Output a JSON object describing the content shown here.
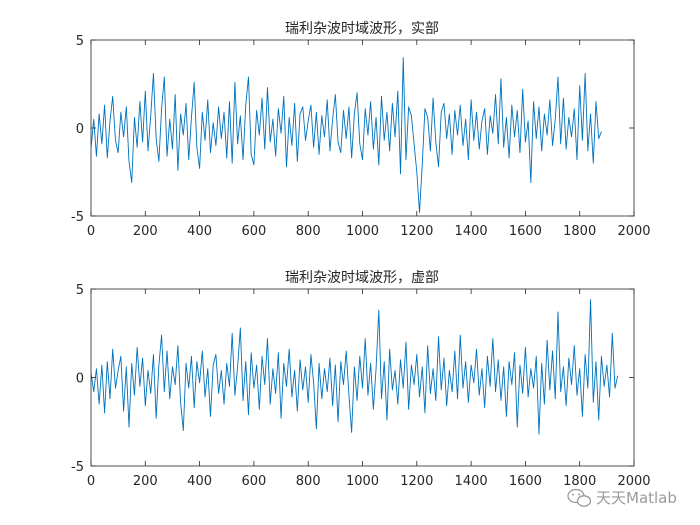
{
  "chart_data": [
    {
      "type": "line",
      "title": "瑞利杂波时域波形，实部",
      "xlim": [
        0,
        2000
      ],
      "ylim": [
        -5,
        5
      ],
      "xticks": [
        "0",
        "200",
        "400",
        "600",
        "800",
        "1000",
        "1200",
        "1400",
        "1600",
        "1800",
        "2000"
      ],
      "yticks": [
        "5",
        "0",
        "-5"
      ],
      "color": "#0072BD",
      "series": [
        {
          "x_step": 10,
          "values": [
            -1.2,
            0.5,
            -1.6,
            0.8,
            -0.9,
            1.3,
            -1.7,
            0.4,
            1.8,
            -0.7,
            -1.4,
            0.9,
            -0.5,
            1.2,
            -1.9,
            -3.1,
            0.6,
            -1.1,
            1.5,
            -0.8,
            2.1,
            -1.3,
            0.7,
            3.1,
            -0.6,
            -1.9,
            1.1,
            2.9,
            -1.6,
            0.5,
            -1.2,
            1.9,
            -2.4,
            0.8,
            -0.4,
            1.4,
            -1.8,
            0.6,
            2.6,
            -1.1,
            -2.3,
            0.9,
            -0.7,
            1.6,
            -1.4,
            0.3,
            -1.0,
            1.2,
            -0.6,
            0.9,
            -1.7,
            1.5,
            -2.0,
            2.6,
            -0.9,
            0.7,
            -1.8,
            1.3,
            2.9,
            -1.5,
            -2.1,
            1.0,
            -0.4,
            1.7,
            -1.2,
            2.3,
            -0.8,
            0.5,
            -1.6,
            1.1,
            -0.3,
            1.8,
            -2.2,
            0.6,
            -1.0,
            1.4,
            -1.9,
            0.8,
            1.2,
            -0.7,
            0.4,
            1.3,
            -1.1,
            0.9,
            -1.5,
            0.7,
            -0.5,
            1.6,
            -1.3,
            0.5,
            1.9,
            -0.8,
            -1.4,
            1.0,
            -0.6,
            1.2,
            -1.7,
            0.8,
            2.0,
            -0.9,
            -1.8,
            1.1,
            -0.4,
            1.5,
            -1.2,
            0.6,
            -2.1,
            1.8,
            -0.7,
            0.9,
            -1.3,
            1.4,
            -0.5,
            2.1,
            -2.6,
            4.0,
            -1.8,
            1.2,
            0.7,
            -0.9,
            -2.5,
            -4.8,
            -2.1,
            1.1,
            0.6,
            -1.3,
            1.7,
            -0.8,
            -2.2,
            0.9,
            1.4,
            -0.6,
            0.8,
            -1.5,
            1.0,
            -0.4,
            1.3,
            -1.0,
            0.5,
            -1.8,
            1.6,
            -0.7,
            0.9,
            -1.2,
            0.4,
            1.1,
            -1.5,
            0.7,
            -0.3,
            1.9,
            -0.9,
            2.8,
            -1.1,
            0.6,
            -1.7,
            1.3,
            -0.5,
            1.0,
            -1.4,
            2.2,
            -0.8,
            0.4,
            -3.1,
            1.5,
            -0.6,
            1.2,
            -1.3,
            0.8,
            -0.4,
            1.6,
            -1.0,
            0.5,
            2.9,
            -0.9,
            1.7,
            -1.2,
            0.6,
            -0.5,
            1.1,
            -1.8,
            2.4,
            -0.7,
            3.1,
            -1.3,
            0.8,
            -2.0,
            1.5,
            -0.6,
            -0.2
          ]
        }
      ]
    },
    {
      "type": "line",
      "title": "瑞利杂波时域波形，虚部",
      "xlim": [
        0,
        2000
      ],
      "ylim": [
        -5,
        5
      ],
      "xticks": [
        "0",
        "200",
        "400",
        "600",
        "800",
        "1000",
        "1200",
        "1400",
        "1600",
        "1800",
        "2000"
      ],
      "yticks": [
        "5",
        "0",
        "-5"
      ],
      "color": "#0072BD",
      "series": [
        {
          "x_step": 10,
          "values": [
            0.3,
            -0.8,
            0.5,
            -1.5,
            0.7,
            -2.0,
            0.9,
            -1.2,
            1.6,
            -0.6,
            0.4,
            1.2,
            -1.9,
            0.6,
            -2.8,
            0.8,
            -1.0,
            1.7,
            -0.5,
            1.1,
            -1.6,
            0.4,
            -0.9,
            1.3,
            -2.3,
            0.7,
            2.4,
            -0.8,
            1.5,
            -1.2,
            0.6,
            -0.4,
            1.8,
            -1.4,
            -3.0,
            0.8,
            -0.6,
            1.2,
            -1.7,
            0.9,
            -0.3,
            1.5,
            -1.1,
            0.5,
            -2.2,
            0.7,
            1.3,
            -0.9,
            0.4,
            -1.5,
            0.8,
            -0.5,
            2.5,
            -1.0,
            0.6,
            2.8,
            -1.3,
            0.9,
            -2.1,
            1.4,
            -0.6,
            0.7,
            -1.8,
            1.2,
            -0.4,
            2.2,
            -1.5,
            0.5,
            -0.9,
            1.4,
            -2.3,
            0.8,
            -0.5,
            1.6,
            -1.1,
            0.4,
            -1.9,
            1.0,
            -0.7,
            0.6,
            -1.4,
            1.3,
            -0.3,
            -2.9,
            0.8,
            -1.2,
            0.5,
            -0.8,
            1.1,
            -1.6,
            0.7,
            -2.5,
            0.9,
            -0.4,
            1.5,
            -1.0,
            -3.1,
            0.6,
            -1.3,
            1.2,
            -0.6,
            2.2,
            -1.0,
            0.8,
            -1.8,
            0.5,
            3.8,
            -1.2,
            0.9,
            -2.4,
            1.6,
            -0.7,
            0.4,
            -1.5,
            1.0,
            -0.6,
            2.0,
            -1.8,
            0.7,
            -0.4,
            1.3,
            -1.1,
            0.6,
            -2.0,
            1.8,
            -0.9,
            0.5,
            -1.3,
            2.3,
            -0.7,
            1.1,
            -1.6,
            0.4,
            -0.8,
            1.5,
            -1.2,
            2.4,
            -0.6,
            0.9,
            -1.4,
            0.7,
            -0.3,
            1.6,
            -1.0,
            0.5,
            -1.7,
            1.2,
            -0.5,
            2.2,
            -0.8,
            1.0,
            -1.3,
            0.6,
            -2.2,
            0.9,
            -0.4,
            1.4,
            -2.8,
            0.7,
            -0.9,
            1.7,
            -1.1,
            0.5,
            -0.6,
            1.2,
            -3.2,
            0.8,
            -1.5,
            2.1,
            -0.7,
            1.5,
            -1.2,
            3.7,
            -0.8,
            0.6,
            -1.6,
            1.1,
            -0.4,
            1.8,
            -1.0,
            0.5,
            -2.2,
            1.3,
            -0.6,
            4.4,
            -1.4,
            0.9,
            -2.4,
            1.2,
            -0.5,
            0.7,
            -1.1,
            2.5,
            -0.6,
            0.1
          ]
        }
      ]
    }
  ],
  "watermark": {
    "text": "天天Matlab",
    "icon": "wechat-icon",
    "color": "#9a9a9a"
  }
}
